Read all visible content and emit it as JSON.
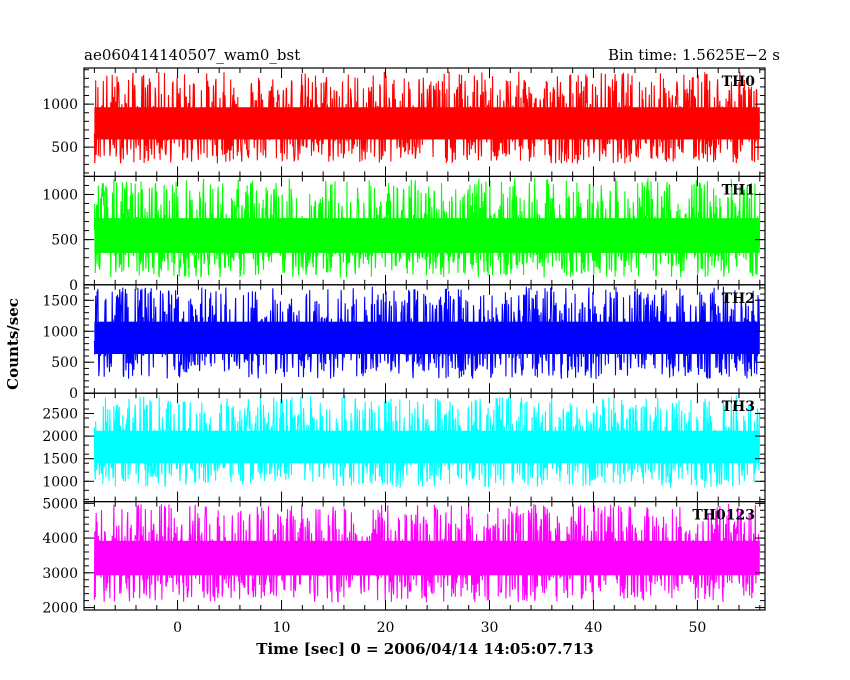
{
  "header": {
    "title": "ae060414140507_wam0_bst",
    "bin_time": "Bin time: 1.5625E−2 s"
  },
  "chart_data": {
    "type": "line",
    "xlabel": "Time [sec] 0 = 2006/04/14 14:05:07.713",
    "ylabel": "Counts/sec",
    "xlim": [
      -9,
      56.5
    ],
    "x_range": [
      -8,
      56
    ],
    "x_ticks": [
      "0",
      "10",
      "20",
      "30",
      "40",
      "50"
    ],
    "x_tick_values": [
      0,
      10,
      20,
      30,
      40,
      50
    ],
    "grid": false,
    "panels": [
      {
        "name": "TH0",
        "color": "#ff0000",
        "ylim": [
          160,
          1420
        ],
        "y_ticks": [
          "500",
          "1000"
        ],
        "y_tick_values": [
          500,
          1000
        ],
        "mean": 740,
        "low": 310,
        "high": 1380
      },
      {
        "name": "TH1",
        "color": "#00ff00",
        "ylim": [
          0,
          1200
        ],
        "y_ticks": [
          "0",
          "500",
          "1000"
        ],
        "y_tick_values": [
          0,
          500,
          1000
        ],
        "mean": 500,
        "low": 80,
        "high": 1180
      },
      {
        "name": "TH2",
        "color": "#0000ff",
        "ylim": [
          0,
          1750
        ],
        "y_ticks": [
          "0",
          "500",
          "1000",
          "1500"
        ],
        "y_tick_values": [
          0,
          500,
          1000,
          1500
        ],
        "mean": 850,
        "low": 230,
        "high": 1720
      },
      {
        "name": "TH3",
        "color": "#00ffff",
        "ylim": [
          550,
          2950
        ],
        "y_ticks": [
          "1000",
          "1500",
          "2000",
          "2500"
        ],
        "y_tick_values": [
          1000,
          1500,
          2000,
          2500
        ],
        "mean": 1700,
        "low": 850,
        "high": 2900
      },
      {
        "name": "TH0123",
        "color": "#ff00ff",
        "ylim": [
          1930,
          5050
        ],
        "y_ticks": [
          "2000",
          "3000",
          "4000",
          "5000"
        ],
        "y_tick_values": [
          2000,
          3000,
          4000,
          5000
        ],
        "mean": 3350,
        "low": 2150,
        "high": 4980
      }
    ]
  }
}
